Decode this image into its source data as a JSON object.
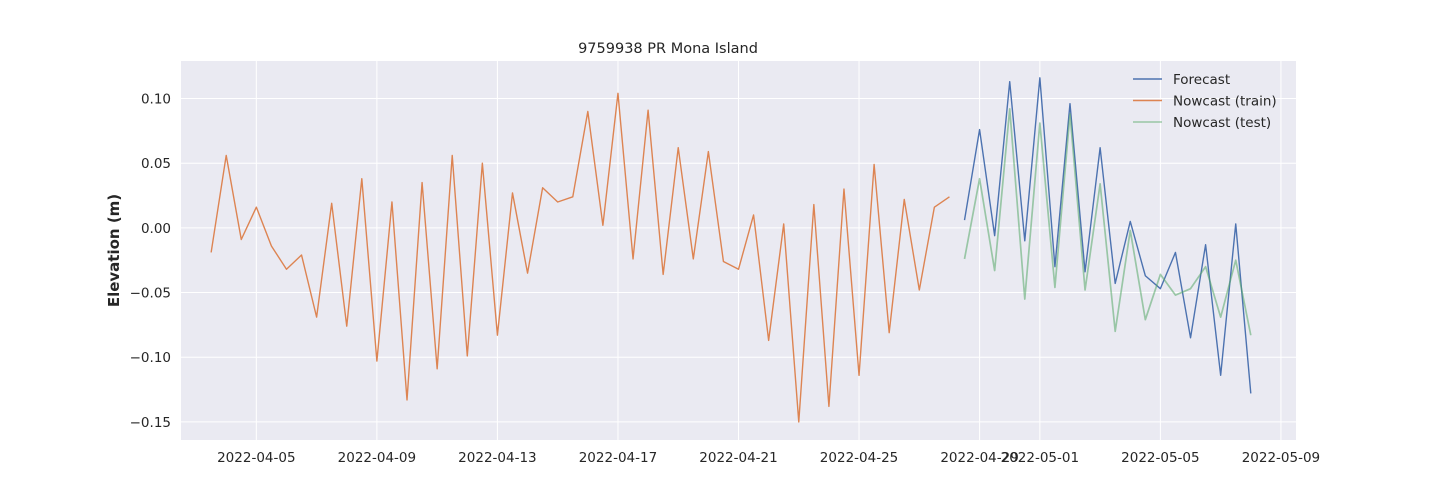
{
  "chart_data": {
    "type": "line",
    "title": "9759938 PR Mona Island",
    "xlabel": "",
    "ylabel": "Elevation (m)",
    "x_tick_labels": [
      "2022-04-05",
      "2022-04-09",
      "2022-04-13",
      "2022-04-17",
      "2022-04-21",
      "2022-04-25",
      "2022-04-29",
      "2022-05-01",
      "2022-05-05",
      "2022-05-09"
    ],
    "y_tick_labels": [
      "0.10",
      "0.05",
      "0.00",
      "−0.05",
      "−0.10",
      "−0.15"
    ],
    "y_ticks": [
      0.1,
      0.05,
      0.0,
      -0.05,
      -0.1,
      -0.15
    ],
    "xlim": [
      "2022-04-02 12:00",
      "2022-05-09 12:00"
    ],
    "ylim": [
      -0.164,
      0.129
    ],
    "grid": true,
    "legend_position": "top-right",
    "series": [
      {
        "name": "Forecast",
        "color": "#4c72b0",
        "x": [
          "2022-04-28 12:00",
          "2022-04-29 00:00",
          "2022-04-29 12:00",
          "2022-04-30 00:00",
          "2022-04-30 12:00",
          "2022-05-01 00:00",
          "2022-05-01 12:00",
          "2022-05-02 00:00",
          "2022-05-02 12:00",
          "2022-05-03 00:00",
          "2022-05-03 12:00",
          "2022-05-04 00:00",
          "2022-05-04 12:00",
          "2022-05-05 00:00",
          "2022-05-05 12:00",
          "2022-05-06 00:00",
          "2022-05-06 12:00",
          "2022-05-07 00:00",
          "2022-05-07 12:00",
          "2022-05-08 00:00"
        ],
        "values": [
          0.006,
          0.076,
          -0.006,
          0.113,
          -0.01,
          0.116,
          -0.03,
          0.096,
          -0.034,
          0.062,
          -0.043,
          0.005,
          -0.037,
          -0.047,
          -0.019,
          -0.085,
          -0.013,
          -0.114,
          0.003,
          -0.128
        ]
      },
      {
        "name": "Nowcast (train)",
        "color": "#dd8452",
        "x": [
          "2022-04-03 12:00",
          "2022-04-04 00:00",
          "2022-04-04 12:00",
          "2022-04-05 00:00",
          "2022-04-05 12:00",
          "2022-04-06 00:00",
          "2022-04-06 12:00",
          "2022-04-07 00:00",
          "2022-04-07 12:00",
          "2022-04-08 00:00",
          "2022-04-08 12:00",
          "2022-04-09 00:00",
          "2022-04-09 12:00",
          "2022-04-10 00:00",
          "2022-04-10 12:00",
          "2022-04-11 00:00",
          "2022-04-11 12:00",
          "2022-04-12 00:00",
          "2022-04-12 12:00",
          "2022-04-13 00:00",
          "2022-04-13 12:00",
          "2022-04-14 00:00",
          "2022-04-14 12:00",
          "2022-04-15 00:00",
          "2022-04-15 12:00",
          "2022-04-16 00:00",
          "2022-04-16 12:00",
          "2022-04-17 00:00",
          "2022-04-17 12:00",
          "2022-04-18 00:00",
          "2022-04-18 12:00",
          "2022-04-19 00:00",
          "2022-04-19 12:00",
          "2022-04-20 00:00",
          "2022-04-20 12:00",
          "2022-04-21 00:00",
          "2022-04-21 12:00",
          "2022-04-22 00:00",
          "2022-04-22 12:00",
          "2022-04-23 00:00",
          "2022-04-23 12:00",
          "2022-04-24 00:00",
          "2022-04-24 12:00",
          "2022-04-25 00:00",
          "2022-04-25 12:00",
          "2022-04-26 00:00",
          "2022-04-26 12:00",
          "2022-04-27 00:00",
          "2022-04-27 12:00",
          "2022-04-28 00:00"
        ],
        "values": [
          -0.019,
          0.056,
          -0.009,
          0.016,
          -0.014,
          -0.032,
          -0.021,
          -0.069,
          0.019,
          -0.076,
          0.038,
          -0.103,
          0.02,
          -0.133,
          0.035,
          -0.109,
          0.056,
          -0.099,
          0.05,
          -0.083,
          0.027,
          -0.035,
          0.031,
          0.02,
          0.024,
          0.09,
          0.002,
          0.104,
          -0.024,
          0.091,
          -0.036,
          0.062,
          -0.024,
          0.059,
          -0.026,
          -0.032,
          0.01,
          -0.087,
          0.003,
          -0.15,
          0.018,
          -0.138,
          0.03,
          -0.114,
          0.049,
          -0.081,
          0.022,
          -0.048,
          0.016,
          0.024
        ]
      },
      {
        "name": "Nowcast (test)",
        "color": "#55a868",
        "x": [
          "2022-04-28 12:00",
          "2022-04-29 00:00",
          "2022-04-29 12:00",
          "2022-04-30 00:00",
          "2022-04-30 12:00",
          "2022-05-01 00:00",
          "2022-05-01 12:00",
          "2022-05-02 00:00",
          "2022-05-02 12:00",
          "2022-05-03 00:00",
          "2022-05-03 12:00",
          "2022-05-04 00:00",
          "2022-05-04 12:00",
          "2022-05-05 00:00",
          "2022-05-05 12:00",
          "2022-05-06 00:00",
          "2022-05-06 12:00",
          "2022-05-07 00:00",
          "2022-05-07 12:00",
          "2022-05-08 00:00"
        ],
        "values": [
          -0.024,
          0.038,
          -0.033,
          0.092,
          -0.055,
          0.081,
          -0.046,
          0.088,
          -0.048,
          0.034,
          -0.08,
          -0.002,
          -0.071,
          -0.036,
          -0.052,
          -0.047,
          -0.03,
          -0.069,
          -0.025,
          -0.083
        ]
      }
    ]
  }
}
